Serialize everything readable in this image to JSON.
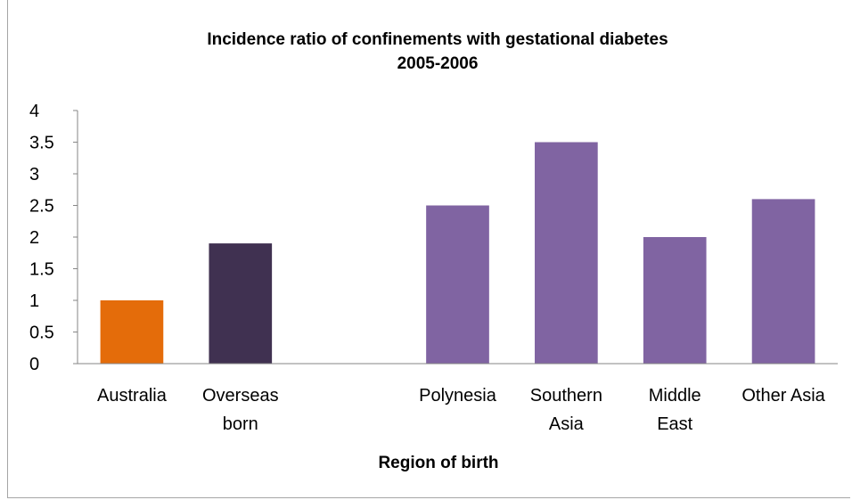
{
  "chart_data": {
    "type": "bar",
    "title": "Incidence ratio of confinements with gestational diabetes",
    "subtitle": "2005-2006",
    "xlabel": "Region of birth",
    "ylabel": "",
    "ylim": [
      0,
      4
    ],
    "yticks": [
      "0",
      "0.5",
      "1",
      "1.5",
      "2",
      "2.5",
      "3",
      "3.5",
      "4"
    ],
    "grid": false,
    "legend": "none",
    "categories": [
      {
        "label": [
          "Australia"
        ],
        "value": 1.0,
        "color": "#e46c0a"
      },
      {
        "label": [
          "Overseas",
          "born"
        ],
        "value": 1.9,
        "color": "#403151"
      },
      {
        "label": [],
        "value": null,
        "color": null
      },
      {
        "label": [
          "Polynesia"
        ],
        "value": 2.5,
        "color": "#8064a2"
      },
      {
        "label": [
          "Southern",
          "Asia"
        ],
        "value": 3.5,
        "color": "#8064a2"
      },
      {
        "label": [
          "Middle",
          "East"
        ],
        "value": 2.0,
        "color": "#8064a2"
      },
      {
        "label": [
          "Other Asia"
        ],
        "value": 2.6,
        "color": "#8064a2"
      }
    ],
    "axis_color": "#868686"
  }
}
